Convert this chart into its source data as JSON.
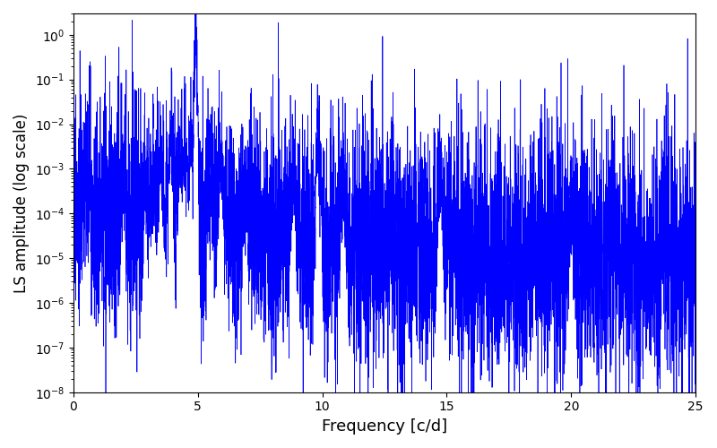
{
  "xlabel": "Frequency [c/d]",
  "ylabel": "LS amplitude (log scale)",
  "line_color": "#0000ff",
  "xlim": [
    0,
    25
  ],
  "ylim": [
    1e-08,
    3.0
  ],
  "freq_min": 0.0,
  "freq_max": 25.0,
  "n_points": 6000,
  "main_peak_freq": 4.92,
  "main_peak_amp": 1.0,
  "seed": 77,
  "figsize": [
    8.0,
    5.0
  ],
  "dpi": 100
}
